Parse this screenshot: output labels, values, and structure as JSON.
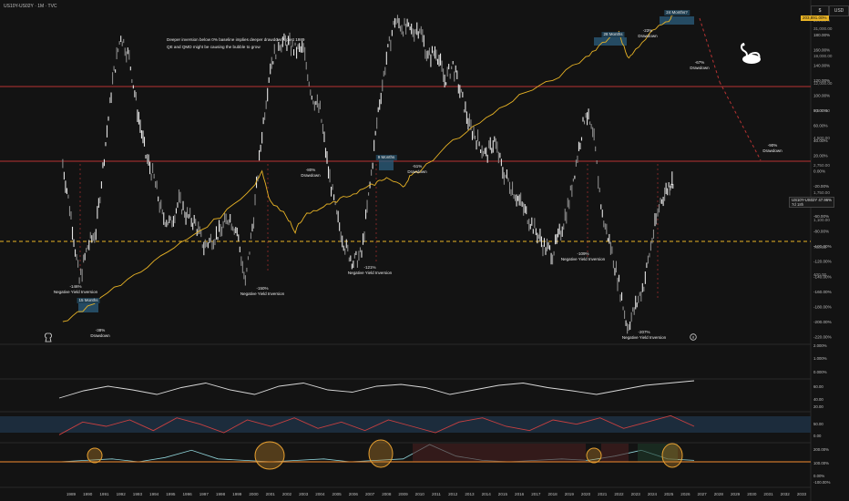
{
  "header": {
    "symbol_line": "US10Y-US02Y · 1M · TVC"
  },
  "toolbar": {
    "currency_left": "$",
    "currency_right": "USD"
  },
  "note": {
    "line1": "Deeper inversion below 0% baseline implies deeper drawdowns post 1989",
    "line2": "QE and QMD might be causing the bubble to grow"
  },
  "price_tags": {
    "main": "US10Y-US02Y",
    "main_val": "47.96%",
    "main_days": "7d 18h",
    "spx_val": "203,891.00%"
  },
  "annotations": {
    "a1": "-146%",
    "a1b": "Negative Yield Inversion",
    "a2": "15 Months",
    "a3": "-38%",
    "a3b": "Drawdown",
    "a4": "-150%",
    "a4b": "Negative Yield Inversion",
    "a5": "-80%",
    "a5b": "Drawdown",
    "a6": "9 Months",
    "a7": "-51%",
    "a7b": "Drawdown",
    "a8": "-121%",
    "a8b": "Negative Yield Inversion",
    "a9": "28 Months",
    "a10": "-23%",
    "a10b": "Drawdown",
    "a11": "24 Months?",
    "a12": "-67%",
    "a12b": "Drawdown",
    "a13": "-90%",
    "a13b": "Drawdown",
    "a14": "-109%",
    "a14b": "Negative Yield Inversion",
    "a15": "-207%",
    "a15b": "Negative Yield Inversion"
  },
  "colors": {
    "background": "#131313",
    "spx_line": "#e8b325",
    "spread_candles": "#d9d9d9",
    "red_line": "#b83333",
    "dashed_zero": "#e8b325",
    "osc_red": "#c94040",
    "osc_blue": "#5b78b8",
    "highlight": "#2a5a78"
  },
  "chart_data": [
    {
      "type": "line",
      "title": "US10Y-US02Y · 1M · TVC",
      "y_axis_ticks": [
        "200.00%",
        "180.00%",
        "160.00%",
        "140.00%",
        "120.00%",
        "100.00%",
        "80.00%",
        "60.00%",
        "40.00%",
        "20.00%",
        "0.00%",
        "-20.00%",
        "-40.00%",
        "-60.00%",
        "-80.00%",
        "-100.00%",
        "-120.00%",
        "-140.00%",
        "-160.00%",
        "-180.00%",
        "-200.00%",
        "-220.00%"
      ],
      "right_axis_ticks": [
        "31,000.00",
        "19,000.00",
        "12,000.00",
        "7,500.00",
        "4,500.00",
        "2,750.00",
        "1,750.00",
        "1,100.00",
        "700.00",
        "400.00"
      ],
      "x_ticks": [
        "1989",
        "1990",
        "1991",
        "1992",
        "1993",
        "1994",
        "1995",
        "1996",
        "1997",
        "1998",
        "1999",
        "2000",
        "2001",
        "2002",
        "2003",
        "2004",
        "2005",
        "2006",
        "2007",
        "2008",
        "2009",
        "2010",
        "2011",
        "2012",
        "2013",
        "2014",
        "2015",
        "2016",
        "2017",
        "2018",
        "2019",
        "2020",
        "2021",
        "2022",
        "2023",
        "2024",
        "2025",
        "2026",
        "2027",
        "2028",
        "2029",
        "2030",
        "2031",
        "2032",
        "2033"
      ],
      "ylim": [
        -220,
        200
      ],
      "series": [
        {
          "name": "US10Y-US02Y",
          "style": "candles",
          "x": [
            1988.5,
            1989,
            1989.5,
            1990,
            1990.5,
            1991,
            1991.5,
            1992,
            1992.5,
            1993,
            1993.5,
            1994,
            1994.5,
            1995,
            1995.5,
            1996,
            1996.5,
            1997,
            1997.5,
            1998,
            1998.5,
            1999,
            1999.5,
            2000,
            2000.5,
            2001,
            2001.5,
            2002,
            2002.5,
            2003,
            2003.5,
            2004,
            2004.5,
            2005,
            2005.5,
            2006,
            2006.5,
            2007,
            2007.5,
            2008,
            2008.5,
            2009,
            2009.5,
            2010,
            2010.5,
            2011,
            2011.5,
            2012,
            2012.5,
            2013,
            2013.5,
            2014,
            2014.5,
            2015,
            2015.5,
            2016,
            2016.5,
            2017,
            2017.5,
            2018,
            2018.5,
            2019,
            2019.5,
            2020,
            2020.5,
            2021,
            2021.5,
            2022,
            2022.5,
            2023,
            2023.5,
            2024,
            2024.5,
            2025,
            2025.3
          ],
          "values": [
            10,
            -60,
            -146,
            -100,
            -80,
            20,
            120,
            180,
            150,
            80,
            20,
            -10,
            -60,
            -70,
            -40,
            -60,
            -70,
            -100,
            -90,
            -80,
            -60,
            -80,
            -150,
            -60,
            50,
            140,
            170,
            170,
            160,
            160,
            100,
            80,
            0,
            -60,
            -100,
            -121,
            -110,
            -20,
            80,
            150,
            200,
            190,
            185,
            190,
            150,
            160,
            120,
            140,
            100,
            60,
            40,
            20,
            40,
            0,
            -20,
            -40,
            -60,
            -80,
            -100,
            -109,
            -80,
            -40,
            20,
            80,
            40,
            -60,
            -100,
            -150,
            -207,
            -180,
            -150,
            -90,
            -40,
            -20,
            -10
          ]
        },
        {
          "name": "SPX",
          "style": "line",
          "x": [
            1988.5,
            1990,
            1992,
            1994,
            1996,
            1998,
            2000,
            2000.5,
            2001,
            2002,
            2002.5,
            2003,
            2004,
            2005,
            2006,
            2007,
            2007.5,
            2008,
            2009,
            2009.5,
            2010,
            2012,
            2014,
            2016,
            2018,
            2020,
            2021,
            2022,
            2022.5,
            2023,
            2024,
            2025,
            2025.3
          ],
          "values": [
            -200,
            -180,
            -150,
            -120,
            -90,
            -60,
            -20,
            0,
            -40,
            -60,
            -80,
            -60,
            -50,
            -40,
            -30,
            -20,
            -15,
            -10,
            -20,
            -5,
            0,
            40,
            70,
            100,
            120,
            150,
            170,
            185,
            150,
            160,
            185,
            200,
            210
          ]
        }
      ],
      "annotations": [
        "-146%",
        "15 Months",
        "-38%",
        "-150%",
        "-80%",
        "9 Months",
        "-51%",
        "-121%",
        "-109%",
        "28 Months",
        "-23%",
        "24 Months?",
        "-67%",
        "-90%",
        "-207%"
      ]
    },
    {
      "type": "line",
      "y_axis_ticks": [
        "2.000%",
        "1.000%",
        "0.000%"
      ],
      "series": [
        {
          "name": "",
          "values": []
        }
      ]
    },
    {
      "type": "line",
      "y_axis_ticks": [
        "60.00",
        "40.00",
        "20.00"
      ],
      "series": [
        {
          "name": "",
          "values": [
            22,
            38,
            48,
            40,
            30,
            45,
            55,
            40,
            30,
            48,
            55,
            40,
            35,
            48,
            52,
            45,
            30,
            40,
            50,
            55,
            45,
            38,
            30,
            40,
            50,
            55,
            60
          ]
        }
      ]
    },
    {
      "type": "line",
      "y_axis_ticks": [
        "50.00",
        "0.00"
      ],
      "series": [
        {
          "name": "",
          "values": [
            10,
            40,
            30,
            45,
            20,
            50,
            35,
            15,
            45,
            30,
            50,
            25,
            40,
            20,
            45,
            30,
            15,
            40,
            50,
            30,
            20,
            45,
            35,
            50,
            25,
            40,
            55,
            30
          ]
        }
      ]
    },
    {
      "type": "area",
      "y_axis_ticks": [
        "200.00%",
        "100.00%",
        "0.00%",
        "-100.00%"
      ],
      "series": [
        {
          "name": "",
          "values": [
            0,
            5,
            10,
            0,
            15,
            40,
            10,
            5,
            0,
            5,
            10,
            0,
            5,
            10,
            60,
            20,
            5,
            0,
            5,
            10,
            5,
            20,
            40,
            10,
            5
          ]
        }
      ]
    }
  ]
}
